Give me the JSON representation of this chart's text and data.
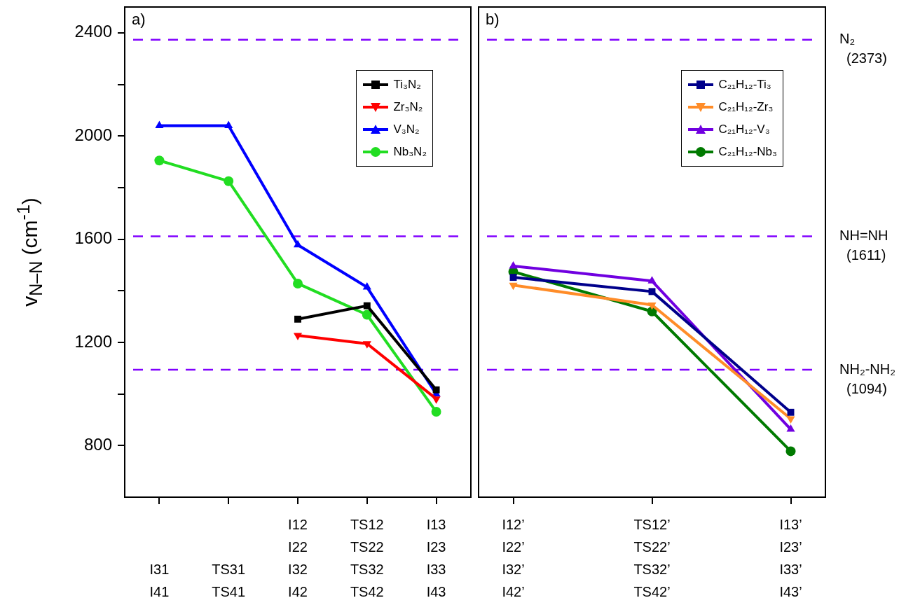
{
  "chart_data": [
    {
      "type": "line",
      "ylabel": "v$_{N–N}$ (cm$^{-1}$)",
      "categories": [
        "I31\nI41",
        "TS31\nTS41",
        "I12\nI22\nI32\nI42",
        "TS12\nTS22\nTS32\nTS42",
        "I13\nI23\nI33\nI43"
      ],
      "series": [
        {
          "name": "Ti₃N₂",
          "color": "#000000",
          "marker": "square",
          "values": [
            null,
            null,
            1290,
            1342,
            1016
          ]
        },
        {
          "name": "Zr₃N₂",
          "color": "#ff0000",
          "marker": "triangle_down",
          "values": [
            null,
            null,
            1227,
            1195,
            981
          ]
        },
        {
          "name": "V₃N₂",
          "color": "#0000ff",
          "marker": "triangle",
          "values": [
            2040,
            2040,
            1578,
            1414,
            1000
          ]
        },
        {
          "name": "Nb₃N₂",
          "color": "#22dd22",
          "marker": "circle",
          "values": [
            1905,
            1825,
            1428,
            1307,
            931
          ]
        }
      ],
      "ylim": [
        600,
        2500
      ],
      "yticks": [
        800,
        {
          "value": 1000,
          "label": null
        },
        1200,
        {
          "value": 1400,
          "label": null
        },
        1600,
        {
          "value": 1800,
          "label": null
        },
        2000,
        {
          "value": 2200,
          "label": null
        },
        2400
      ],
      "ref_lines": [
        {
          "axis": "y",
          "value": 2373,
          "color": "#8000ff",
          "line_style": "dashed"
        },
        {
          "axis": "y",
          "value": 1611,
          "color": "#8000ff",
          "line_style": "dashed"
        },
        {
          "axis": "y",
          "value": 1094,
          "color": "#8000ff",
          "line_style": "dashed"
        }
      ],
      "annotations": [
        "a)"
      ],
      "legend": "top right",
      "grid": false,
      "line_style": "solid"
    },
    {
      "type": "line",
      "categories": [
        "I12’\nI22’\nI32’\nI42’",
        "TS12’\nTS22’\nTS32’\nTS42’",
        "I13’\nI23’\nI33’\nI43’"
      ],
      "series": [
        {
          "name": "C₂₁H₁₂-Ti₃",
          "color": "#00008b",
          "marker": "square",
          "values": [
            1452,
            1397,
            929
          ]
        },
        {
          "name": "C₂₁H₁₂-Zr₃",
          "color": "#ff8c28",
          "marker": "triangle_down",
          "values": [
            1422,
            1345,
            904
          ]
        },
        {
          "name": "C₂₁H₁₂-V₃",
          "color": "#7000e0",
          "marker": "triangle",
          "values": [
            1496,
            1438,
            863
          ]
        },
        {
          "name": "C₂₁H₁₂-Nb₃",
          "color": "#007a00",
          "marker": "circle",
          "values": [
            1474,
            1320,
            778
          ]
        }
      ],
      "ylim": [
        600,
        2500
      ],
      "tick_labels": "x",
      "ref_lines": [
        {
          "axis": "y",
          "value": 2373,
          "label": "N₂\n(2373)",
          "color": "#8000ff",
          "line_style": "dashed"
        },
        {
          "axis": "y",
          "value": 1611,
          "label": "NH=NH\n(1611)",
          "color": "#8000ff",
          "line_style": "dashed"
        },
        {
          "axis": "y",
          "value": 1094,
          "label": "NH₂-NH₂\n(1094)",
          "color": "#8000ff",
          "line_style": "dashed"
        }
      ],
      "annotations": [
        "b)"
      ],
      "legend": "top right",
      "grid": false,
      "line_style": "solid"
    }
  ]
}
